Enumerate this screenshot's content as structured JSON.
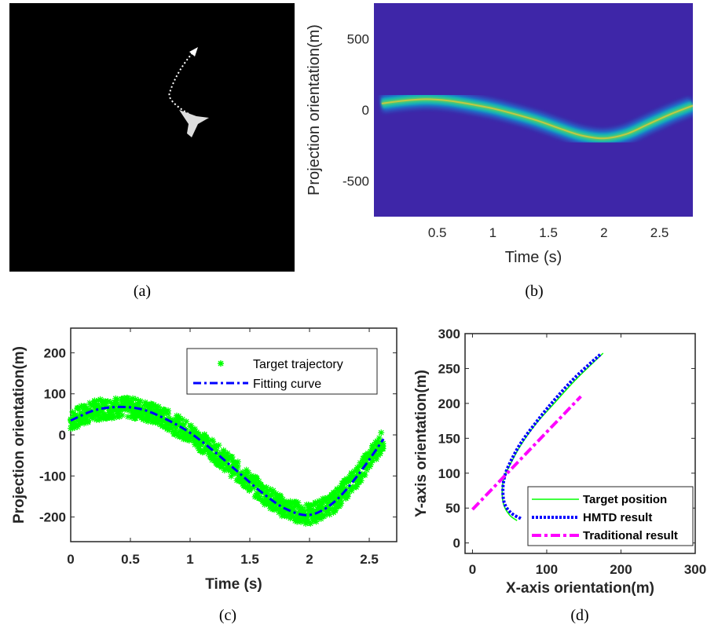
{
  "panel_a": {
    "caption": "(a)",
    "background": "#000000"
  },
  "chart_data": [
    {
      "id": "b",
      "caption": "(b)",
      "type": "heatmap",
      "xlabel": "Time (s)",
      "ylabel": "Projection orientation(m)",
      "xlim": [
        -0.07,
        2.8
      ],
      "ylim": [
        -750,
        750
      ],
      "xticks": [
        0.5,
        1,
        1.5,
        2,
        2.5
      ],
      "yticks": [
        500,
        0,
        -500
      ],
      "background_color": "#3e26a8",
      "ridge": {
        "x": [
          0,
          0.2,
          0.4,
          0.6,
          0.8,
          1.0,
          1.2,
          1.4,
          1.6,
          1.8,
          2.0,
          2.2,
          2.4,
          2.6,
          2.8
        ],
        "y": [
          45,
          65,
          75,
          65,
          40,
          10,
          -30,
          -75,
          -130,
          -180,
          -200,
          -170,
          -100,
          -30,
          30
        ]
      }
    },
    {
      "id": "c",
      "caption": "(c)",
      "type": "scatter",
      "xlabel": "Time (s)",
      "ylabel": "Projection orientation(m)",
      "xlim": [
        0,
        2.73
      ],
      "ylim": [
        -260,
        260
      ],
      "xticks": [
        0,
        0.5,
        1,
        1.5,
        2,
        2.5
      ],
      "yticks": [
        200,
        100,
        0,
        -100,
        -200
      ],
      "legend_position": "top-right",
      "series": [
        {
          "name": "Target trajectory",
          "color": "#00ff00",
          "marker": "star",
          "spread": 25
        },
        {
          "name": "Fitting curve",
          "color": "#0000ff",
          "style": "dash-dot",
          "x": [
            0,
            0.2,
            0.4,
            0.6,
            0.8,
            1.0,
            1.2,
            1.4,
            1.6,
            1.8,
            2.0,
            2.2,
            2.4,
            2.62
          ],
          "y": [
            35,
            60,
            68,
            62,
            38,
            5,
            -40,
            -90,
            -140,
            -180,
            -195,
            -165,
            -100,
            -10
          ]
        }
      ]
    },
    {
      "id": "d",
      "caption": "(d)",
      "type": "line",
      "xlabel": "X-axis orientation(m)",
      "ylabel": "Y-axis orientation(m)",
      "xlim": [
        -10,
        300
      ],
      "ylim": [
        -15,
        300
      ],
      "xticks": [
        0,
        100,
        200,
        300
      ],
      "yticks": [
        0,
        50,
        100,
        150,
        200,
        250,
        300
      ],
      "legend_position": "bottom-right",
      "series": [
        {
          "name": "Target position",
          "color": "#00ff00",
          "style": "solid",
          "x": [
            60,
            50,
            42,
            40,
            43,
            52,
            65,
            85,
            110,
            140,
            176
          ],
          "y": [
            32,
            40,
            55,
            75,
            95,
            115,
            140,
            170,
            200,
            235,
            272
          ]
        },
        {
          "name": "HMTD result",
          "color": "#0000ff",
          "style": "dotted",
          "x": [
            65,
            52,
            43,
            41,
            44,
            52,
            65,
            85,
            108,
            138,
            172
          ],
          "y": [
            35,
            43,
            57,
            78,
            98,
            118,
            143,
            172,
            202,
            237,
            270
          ]
        },
        {
          "name": "Traditional result",
          "color": "#ff00ff",
          "style": "dash-dot",
          "x": [
            0,
            146
          ],
          "y": [
            48,
            210
          ]
        }
      ]
    }
  ]
}
